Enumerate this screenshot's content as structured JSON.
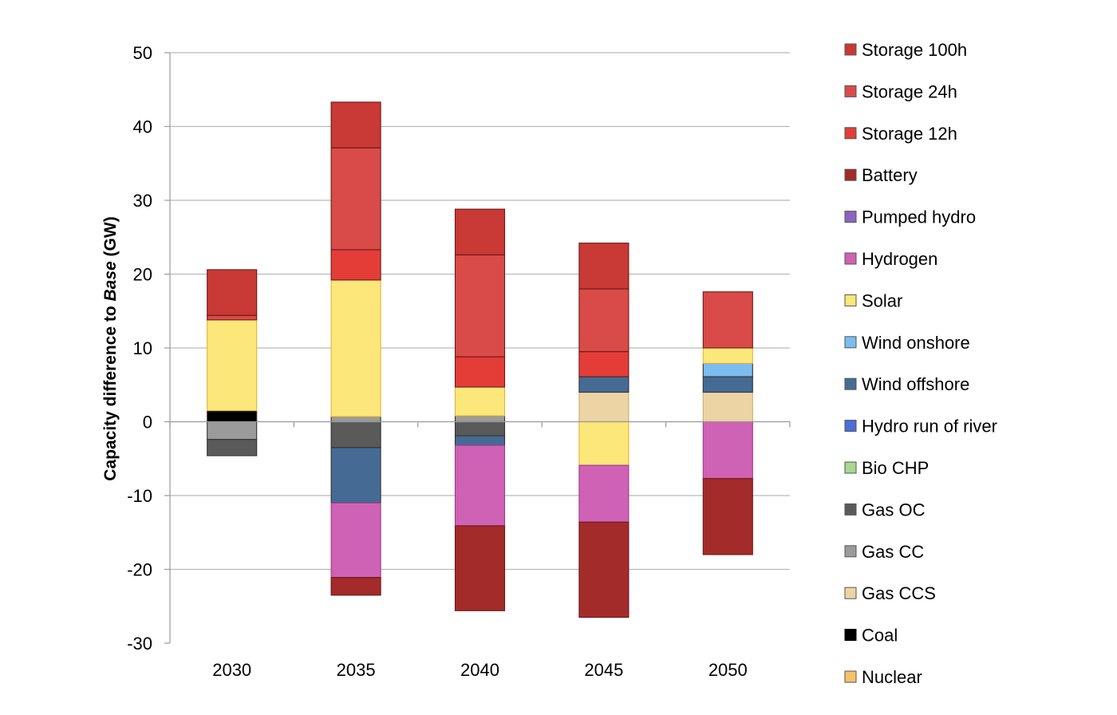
{
  "chart_data": {
    "type": "bar",
    "stacked": true,
    "title": "",
    "xlabel": "",
    "ylabel": {
      "prefix": "Capacity difference to ",
      "emphasis": "Base",
      "suffix": " (GW)"
    },
    "ylim": [
      -30,
      50
    ],
    "yticks": [
      50,
      40,
      30,
      20,
      10,
      0,
      -10,
      -20,
      -30
    ],
    "grid": true,
    "legend_position": "right",
    "categories": [
      "2030",
      "2035",
      "2040",
      "2045",
      "2050"
    ],
    "series": [
      {
        "name": "Nuclear",
        "color": "#f5c26b",
        "values": [
          0,
          0,
          0,
          0,
          0
        ]
      },
      {
        "name": "Coal",
        "color": "#000000",
        "values": [
          1.5,
          0,
          0,
          0,
          0
        ]
      },
      {
        "name": "Gas CCS",
        "color": "#ecd4a4",
        "values": [
          0,
          0,
          0,
          4,
          4
        ]
      },
      {
        "name": "Gas CC",
        "color": "#9b9b9b",
        "values": [
          -2.4,
          0.7,
          0.8,
          0,
          0
        ]
      },
      {
        "name": "Gas OC",
        "color": "#5a5a5a",
        "values": [
          -2.2,
          -3.5,
          -1.9,
          0,
          0
        ]
      },
      {
        "name": "Bio CHP",
        "color": "#a6d98f",
        "values": [
          0,
          0,
          0,
          0,
          0
        ]
      },
      {
        "name": "Hydro run of river",
        "color": "#4a6fd6",
        "values": [
          0,
          0,
          0,
          0,
          0
        ]
      },
      {
        "name": "Wind offshore",
        "color": "#456b95",
        "values": [
          0,
          -7.5,
          -1.3,
          2.1,
          2.1
        ]
      },
      {
        "name": "Wind onshore",
        "color": "#7cbdf0",
        "values": [
          0,
          0,
          0,
          0,
          1.8
        ]
      },
      {
        "name": "Solar",
        "color": "#fce77a",
        "values": [
          12.3,
          18.5,
          3.9,
          -5.9,
          2.1
        ]
      },
      {
        "name": "Hydrogen",
        "color": "#cf62b5",
        "values": [
          0,
          -10.1,
          -10.9,
          -7.7,
          -7.7
        ]
      },
      {
        "name": "Pumped hydro",
        "color": "#8e63c1",
        "values": [
          0,
          0,
          0,
          0,
          0
        ]
      },
      {
        "name": "Battery",
        "color": "#a32b2a",
        "values": [
          0,
          -2.4,
          -11.5,
          -12.9,
          -10.3
        ]
      },
      {
        "name": "Storage 12h",
        "color": "#e43d38",
        "values": [
          0,
          4.1,
          4.1,
          3.4,
          0
        ]
      },
      {
        "name": "Storage 24h",
        "color": "#d94b48",
        "values": [
          0.6,
          13.8,
          13.8,
          8.5,
          7.6
        ]
      },
      {
        "name": "Storage 100h",
        "color": "#c93935",
        "values": [
          6.2,
          6.2,
          6.2,
          6.2,
          0
        ]
      }
    ]
  }
}
